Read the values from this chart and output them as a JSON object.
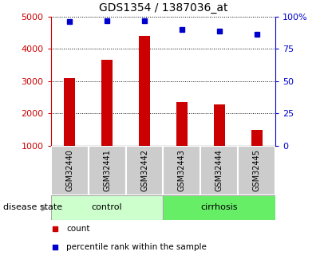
{
  "title": "GDS1354 / 1387036_at",
  "samples": [
    "GSM32440",
    "GSM32441",
    "GSM32442",
    "GSM32443",
    "GSM32444",
    "GSM32445"
  ],
  "counts": [
    3100,
    3660,
    4400,
    2350,
    2280,
    1480
  ],
  "percentiles": [
    96,
    97,
    97,
    90,
    89,
    86
  ],
  "ylim_left": [
    1000,
    5000
  ],
  "ylim_right": [
    0,
    100
  ],
  "yticks_left": [
    1000,
    2000,
    3000,
    4000,
    5000
  ],
  "yticks_right": [
    0,
    25,
    50,
    75,
    100
  ],
  "groups": [
    {
      "label": "control",
      "indices": [
        0,
        1,
        2
      ],
      "color": "#ccffcc"
    },
    {
      "label": "cirrhosis",
      "indices": [
        3,
        4,
        5
      ],
      "color": "#66ee66"
    }
  ],
  "bar_color": "#cc0000",
  "dot_color": "#0000cc",
  "bar_width": 0.3,
  "grid_color": "black",
  "sample_box_color": "#cccccc",
  "legend_items": [
    {
      "label": "count",
      "color": "#cc0000"
    },
    {
      "label": "percentile rank within the sample",
      "color": "#0000cc"
    }
  ],
  "disease_state_label": "disease state",
  "left_axis_color": "#cc0000",
  "right_axis_color": "#0000cc"
}
